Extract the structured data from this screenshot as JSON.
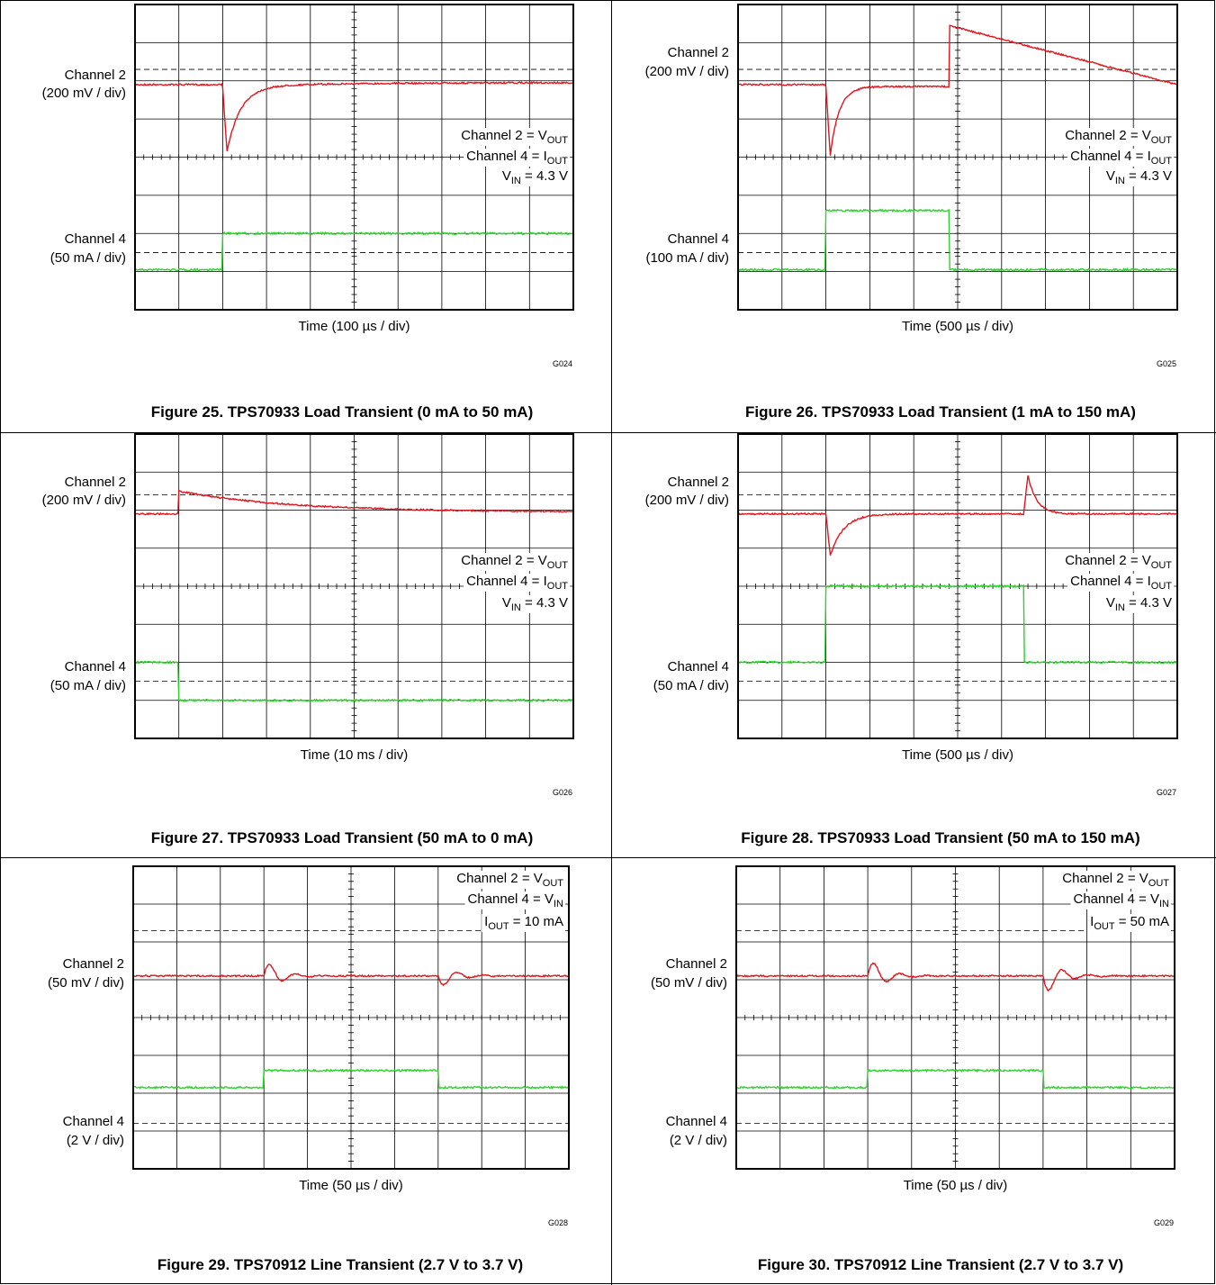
{
  "figures": [
    {
      "ch2_label": "Channel 2",
      "ch2_scale": "(200 mV / div)",
      "ch4_label": "Channel 4",
      "ch4_scale": "(50 mA / div)",
      "notes": [
        [
          {
            "t": "Channel 2 = V"
          },
          {
            "t": "OUT",
            "sub": true
          }
        ],
        [
          {
            "t": "Channel 4 = I"
          },
          {
            "t": "OUT",
            "sub": true
          }
        ],
        [
          {
            "t": "V"
          },
          {
            "t": "IN",
            "sub": true
          },
          {
            "t": " = 4.3 V"
          }
        ]
      ],
      "time": "Time (100 µs / div)",
      "code": "G024",
      "caption": "Figure 25. TPS70933 Load Transient (0 mA to 50 mA)"
    },
    {
      "ch2_label": "Channel 2",
      "ch2_scale": "(200 mV / div)",
      "ch4_label": "Channel 4",
      "ch4_scale": "(100 mA / div)",
      "notes": [
        [
          {
            "t": "Channel 2 = V"
          },
          {
            "t": "OUT",
            "sub": true
          }
        ],
        [
          {
            "t": "Channel 4 = I"
          },
          {
            "t": "OUT",
            "sub": true
          }
        ],
        [
          {
            "t": "V"
          },
          {
            "t": "IN",
            "sub": true
          },
          {
            "t": " = 4.3 V"
          }
        ]
      ],
      "time": "Time (500 µs / div)",
      "code": "G025",
      "caption": "Figure 26. TPS70933 Load Transient (1 mA to 150 mA)"
    },
    {
      "ch2_label": "Channel 2",
      "ch2_scale": "(200 mV / div)",
      "ch4_label": "Channel 4",
      "ch4_scale": "(50 mA / div)",
      "notes": [
        [
          {
            "t": "Channel 2 = V"
          },
          {
            "t": "OUT",
            "sub": true
          }
        ],
        [
          {
            "t": "Channel 4 = I"
          },
          {
            "t": "OUT",
            "sub": true
          }
        ],
        [
          {
            "t": "V"
          },
          {
            "t": "IN",
            "sub": true
          },
          {
            "t": " = 4.3 V"
          }
        ]
      ],
      "time": "Time (10 ms / div)",
      "code": "G026",
      "caption": "Figure 27. TPS70933 Load Transient (50 mA to 0 mA)"
    },
    {
      "ch2_label": "Channel 2",
      "ch2_scale": "(200 mV / div)",
      "ch4_label": "Channel 4",
      "ch4_scale": "(50 mA / div)",
      "notes": [
        [
          {
            "t": "Channel 2 = V"
          },
          {
            "t": "OUT",
            "sub": true
          }
        ],
        [
          {
            "t": "Channel 4 = I"
          },
          {
            "t": "OUT",
            "sub": true
          }
        ],
        [
          {
            "t": "V"
          },
          {
            "t": "IN",
            "sub": true
          },
          {
            "t": " = 4.3 V"
          }
        ]
      ],
      "time": "Time (500 µs / div)",
      "code": "G027",
      "caption": "Figure 28. TPS70933 Load Transient (50 mA to 150 mA)"
    },
    {
      "ch2_label": "Channel 2",
      "ch2_scale": "(50 mV / div)",
      "ch4_label": "Channel 4",
      "ch4_scale": "(2 V / div)",
      "notes": [
        [
          {
            "t": "Channel 2 = V"
          },
          {
            "t": "OUT",
            "sub": true
          }
        ],
        [
          {
            "t": "Channel 4 = V"
          },
          {
            "t": "IN",
            "sub": true
          }
        ],
        [
          {
            "t": "I"
          },
          {
            "t": "OUT",
            "sub": true
          },
          {
            "t": " = 10 mA"
          }
        ]
      ],
      "time": "Time (50 µs / div)",
      "code": "G028",
      "caption": "Figure 29. TPS70912 Line Transient (2.7 V to 3.7 V)"
    },
    {
      "ch2_label": "Channel 2",
      "ch2_scale": "(50 mV / div)",
      "ch4_label": "Channel 4",
      "ch4_scale": "(2 V / div)",
      "notes": [
        [
          {
            "t": "Channel 2 = V"
          },
          {
            "t": "OUT",
            "sub": true
          }
        ],
        [
          {
            "t": "Channel 4 = V"
          },
          {
            "t": "IN",
            "sub": true
          }
        ],
        [
          {
            "t": "I"
          },
          {
            "t": "OUT",
            "sub": true
          },
          {
            "t": " = 50 mA"
          }
        ]
      ],
      "time": "Time (50 µs / div)",
      "code": "G029",
      "caption": "Figure 30. TPS70912 Line Transient (2.7 V to 3.7 V)"
    }
  ]
}
